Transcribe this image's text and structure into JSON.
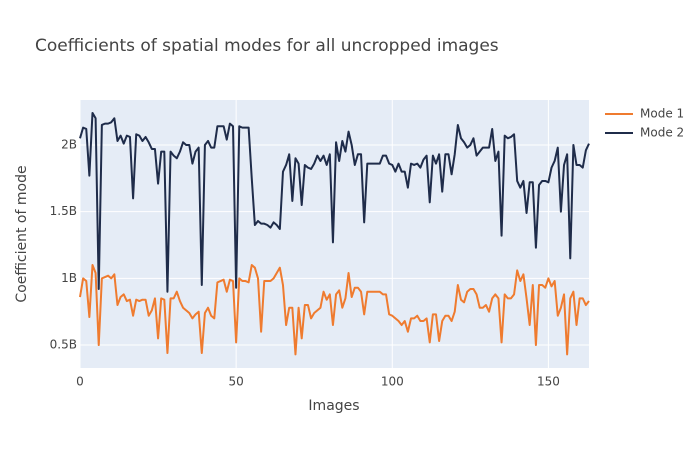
{
  "chart_data": {
    "type": "line",
    "title": "Coefficients of spatial modes for all uncropped images",
    "x_label": "Images",
    "y_label": "Coefficient of mode",
    "x": [
      0,
      1,
      2,
      3,
      4,
      5,
      6,
      7,
      8,
      9,
      10,
      11,
      12,
      13,
      14,
      15,
      16,
      17,
      18,
      19,
      20,
      21,
      22,
      23,
      24,
      25,
      26,
      27,
      28,
      29,
      30,
      31,
      32,
      33,
      34,
      35,
      36,
      37,
      38,
      39,
      40,
      41,
      42,
      43,
      44,
      45,
      46,
      47,
      48,
      49,
      50,
      51,
      52,
      53,
      54,
      55,
      56,
      57,
      58,
      59,
      60,
      61,
      62,
      63,
      64,
      65,
      66,
      67,
      68,
      69,
      70,
      71,
      72,
      73,
      74,
      75,
      76,
      77,
      78,
      79,
      80,
      81,
      82,
      83,
      84,
      85,
      86,
      87,
      88,
      89,
      90,
      91,
      92,
      93,
      94,
      95,
      96,
      97,
      98,
      99,
      100,
      101,
      102,
      103,
      104,
      105,
      106,
      107,
      108,
      109,
      110,
      111,
      112,
      113,
      114,
      115,
      116,
      117,
      118,
      119,
      120,
      121,
      122,
      123,
      124,
      125,
      126,
      127,
      128,
      129,
      130,
      131,
      132,
      133,
      134,
      135,
      136,
      137,
      138,
      139,
      140,
      141,
      142,
      143,
      144,
      145,
      146,
      147,
      148,
      149,
      150,
      151,
      152,
      153,
      154,
      155,
      156,
      157,
      158,
      159,
      160,
      161,
      162,
      163
    ],
    "series": [
      {
        "name": "Mode 1",
        "color": "#ef7b2f",
        "values": [
          860000000.0,
          1000000000.0,
          980000000.0,
          710000000.0,
          1100000000.0,
          1040000000.0,
          500000000.0,
          1000000000.0,
          1010000000.0,
          1020000000.0,
          1000000000.0,
          1030000000.0,
          800000000.0,
          860000000.0,
          880000000.0,
          830000000.0,
          840000000.0,
          720000000.0,
          840000000.0,
          830000000.0,
          840000000.0,
          840000000.0,
          720000000.0,
          760000000.0,
          850000000.0,
          550000000.0,
          850000000.0,
          840000000.0,
          440000000.0,
          850000000.0,
          850000000.0,
          900000000.0,
          830000000.0,
          780000000.0,
          760000000.0,
          740000000.0,
          700000000.0,
          730000000.0,
          750000000.0,
          440000000.0,
          740000000.0,
          780000000.0,
          720000000.0,
          700000000.0,
          970000000.0,
          980000000.0,
          990000000.0,
          900000000.0,
          990000000.0,
          980000000.0,
          520000000.0,
          1000000000.0,
          980000000.0,
          980000000.0,
          970000000.0,
          1100000000.0,
          1080000000.0,
          1000000000.0,
          600000000.0,
          980000000.0,
          980000000.0,
          980000000.0,
          1000000000.0,
          1040000000.0,
          1080000000.0,
          950000000.0,
          650000000.0,
          780000000.0,
          780000000.0,
          430000000.0,
          780000000.0,
          550000000.0,
          800000000.0,
          800000000.0,
          700000000.0,
          740000000.0,
          760000000.0,
          780000000.0,
          900000000.0,
          840000000.0,
          880000000.0,
          650000000.0,
          880000000.0,
          910000000.0,
          780000000.0,
          850000000.0,
          1040000000.0,
          860000000.0,
          930000000.0,
          930000000.0,
          900000000.0,
          730000000.0,
          900000000.0,
          900000000.0,
          900000000.0,
          900000000.0,
          900000000.0,
          880000000.0,
          880000000.0,
          730000000.0,
          720000000.0,
          700000000.0,
          680000000.0,
          650000000.0,
          680000000.0,
          600000000.0,
          700000000.0,
          700000000.0,
          720000000.0,
          680000000.0,
          680000000.0,
          700000000.0,
          520000000.0,
          730000000.0,
          730000000.0,
          530000000.0,
          680000000.0,
          720000000.0,
          720000000.0,
          680000000.0,
          750000000.0,
          950000000.0,
          840000000.0,
          820000000.0,
          900000000.0,
          920000000.0,
          920000000.0,
          880000000.0,
          780000000.0,
          780000000.0,
          800000000.0,
          750000000.0,
          850000000.0,
          880000000.0,
          850000000.0,
          520000000.0,
          880000000.0,
          850000000.0,
          850000000.0,
          880000000.0,
          1060000000.0,
          980000000.0,
          1030000000.0,
          850000000.0,
          650000000.0,
          950000000.0,
          500000000.0,
          950000000.0,
          950000000.0,
          930000000.0,
          1000000000.0,
          940000000.0,
          980000000.0,
          720000000.0,
          780000000.0,
          880000000.0,
          430000000.0,
          850000000.0,
          900000000.0,
          650000000.0,
          850000000.0,
          850000000.0,
          800000000.0,
          830000000.0
        ]
      },
      {
        "name": "Mode 2",
        "color": "#1f2c4a",
        "values": [
          2050000000.0,
          2130000000.0,
          2120000000.0,
          1770000000.0,
          2240000000.0,
          2200000000.0,
          920000000.0,
          2150000000.0,
          2160000000.0,
          2160000000.0,
          2170000000.0,
          2200000000.0,
          2030000000.0,
          2070000000.0,
          2010000000.0,
          2070000000.0,
          2060000000.0,
          1600000000.0,
          2080000000.0,
          2070000000.0,
          2030000000.0,
          2060000000.0,
          2020000000.0,
          1970000000.0,
          1970000000.0,
          1710000000.0,
          1950000000.0,
          1950000000.0,
          900000000.0,
          1950000000.0,
          1920000000.0,
          1900000000.0,
          1950000000.0,
          2020000000.0,
          2000000000.0,
          2000000000.0,
          1860000000.0,
          1950000000.0,
          1980000000.0,
          950000000.0,
          2000000000.0,
          2030000000.0,
          1980000000.0,
          1980000000.0,
          2140000000.0,
          2140000000.0,
          2140000000.0,
          2040000000.0,
          2160000000.0,
          2140000000.0,
          930000000.0,
          2140000000.0,
          2130000000.0,
          2130000000.0,
          2130000000.0,
          1750000000.0,
          1400000000.0,
          1430000000.0,
          1410000000.0,
          1410000000.0,
          1400000000.0,
          1380000000.0,
          1420000000.0,
          1400000000.0,
          1370000000.0,
          1800000000.0,
          1850000000.0,
          1930000000.0,
          1580000000.0,
          1900000000.0,
          1860000000.0,
          1550000000.0,
          1850000000.0,
          1830000000.0,
          1820000000.0,
          1860000000.0,
          1920000000.0,
          1880000000.0,
          1920000000.0,
          1850000000.0,
          1930000000.0,
          1270000000.0,
          2020000000.0,
          1880000000.0,
          2030000000.0,
          1950000000.0,
          2100000000.0,
          2000000000.0,
          1850000000.0,
          1930000000.0,
          1930000000.0,
          1420000000.0,
          1860000000.0,
          1860000000.0,
          1860000000.0,
          1860000000.0,
          1860000000.0,
          1920000000.0,
          1920000000.0,
          1860000000.0,
          1850000000.0,
          1800000000.0,
          1860000000.0,
          1800000000.0,
          1800000000.0,
          1680000000.0,
          1860000000.0,
          1850000000.0,
          1860000000.0,
          1830000000.0,
          1890000000.0,
          1920000000.0,
          1570000000.0,
          1920000000.0,
          1860000000.0,
          1930000000.0,
          1650000000.0,
          1930000000.0,
          1930000000.0,
          1780000000.0,
          1930000000.0,
          2150000000.0,
          2050000000.0,
          2020000000.0,
          1980000000.0,
          2000000000.0,
          2050000000.0,
          1920000000.0,
          1950000000.0,
          1980000000.0,
          1980000000.0,
          1980000000.0,
          2120000000.0,
          1880000000.0,
          1950000000.0,
          1320000000.0,
          2070000000.0,
          2050000000.0,
          2060000000.0,
          2080000000.0,
          1730000000.0,
          1680000000.0,
          1730000000.0,
          1490000000.0,
          1720000000.0,
          1720000000.0,
          1230000000.0,
          1700000000.0,
          1730000000.0,
          1730000000.0,
          1720000000.0,
          1830000000.0,
          1880000000.0,
          1980000000.0,
          1500000000.0,
          1850000000.0,
          1930000000.0,
          1150000000.0,
          2000000000.0,
          1850000000.0,
          1850000000.0,
          1830000000.0,
          1960000000.0,
          2010000000.0
        ]
      }
    ],
    "xlim": [
      0,
      163
    ],
    "xticks": [
      0,
      50,
      100,
      150
    ],
    "ylim": [
      328000000,
      2337000000
    ],
    "yticks": [
      {
        "value": 500000000,
        "label": "0.5B"
      },
      {
        "value": 1000000000,
        "label": "1B"
      },
      {
        "value": 1500000000,
        "label": "1.5B"
      },
      {
        "value": 2000000000,
        "label": "2B"
      }
    ],
    "grid": true
  }
}
